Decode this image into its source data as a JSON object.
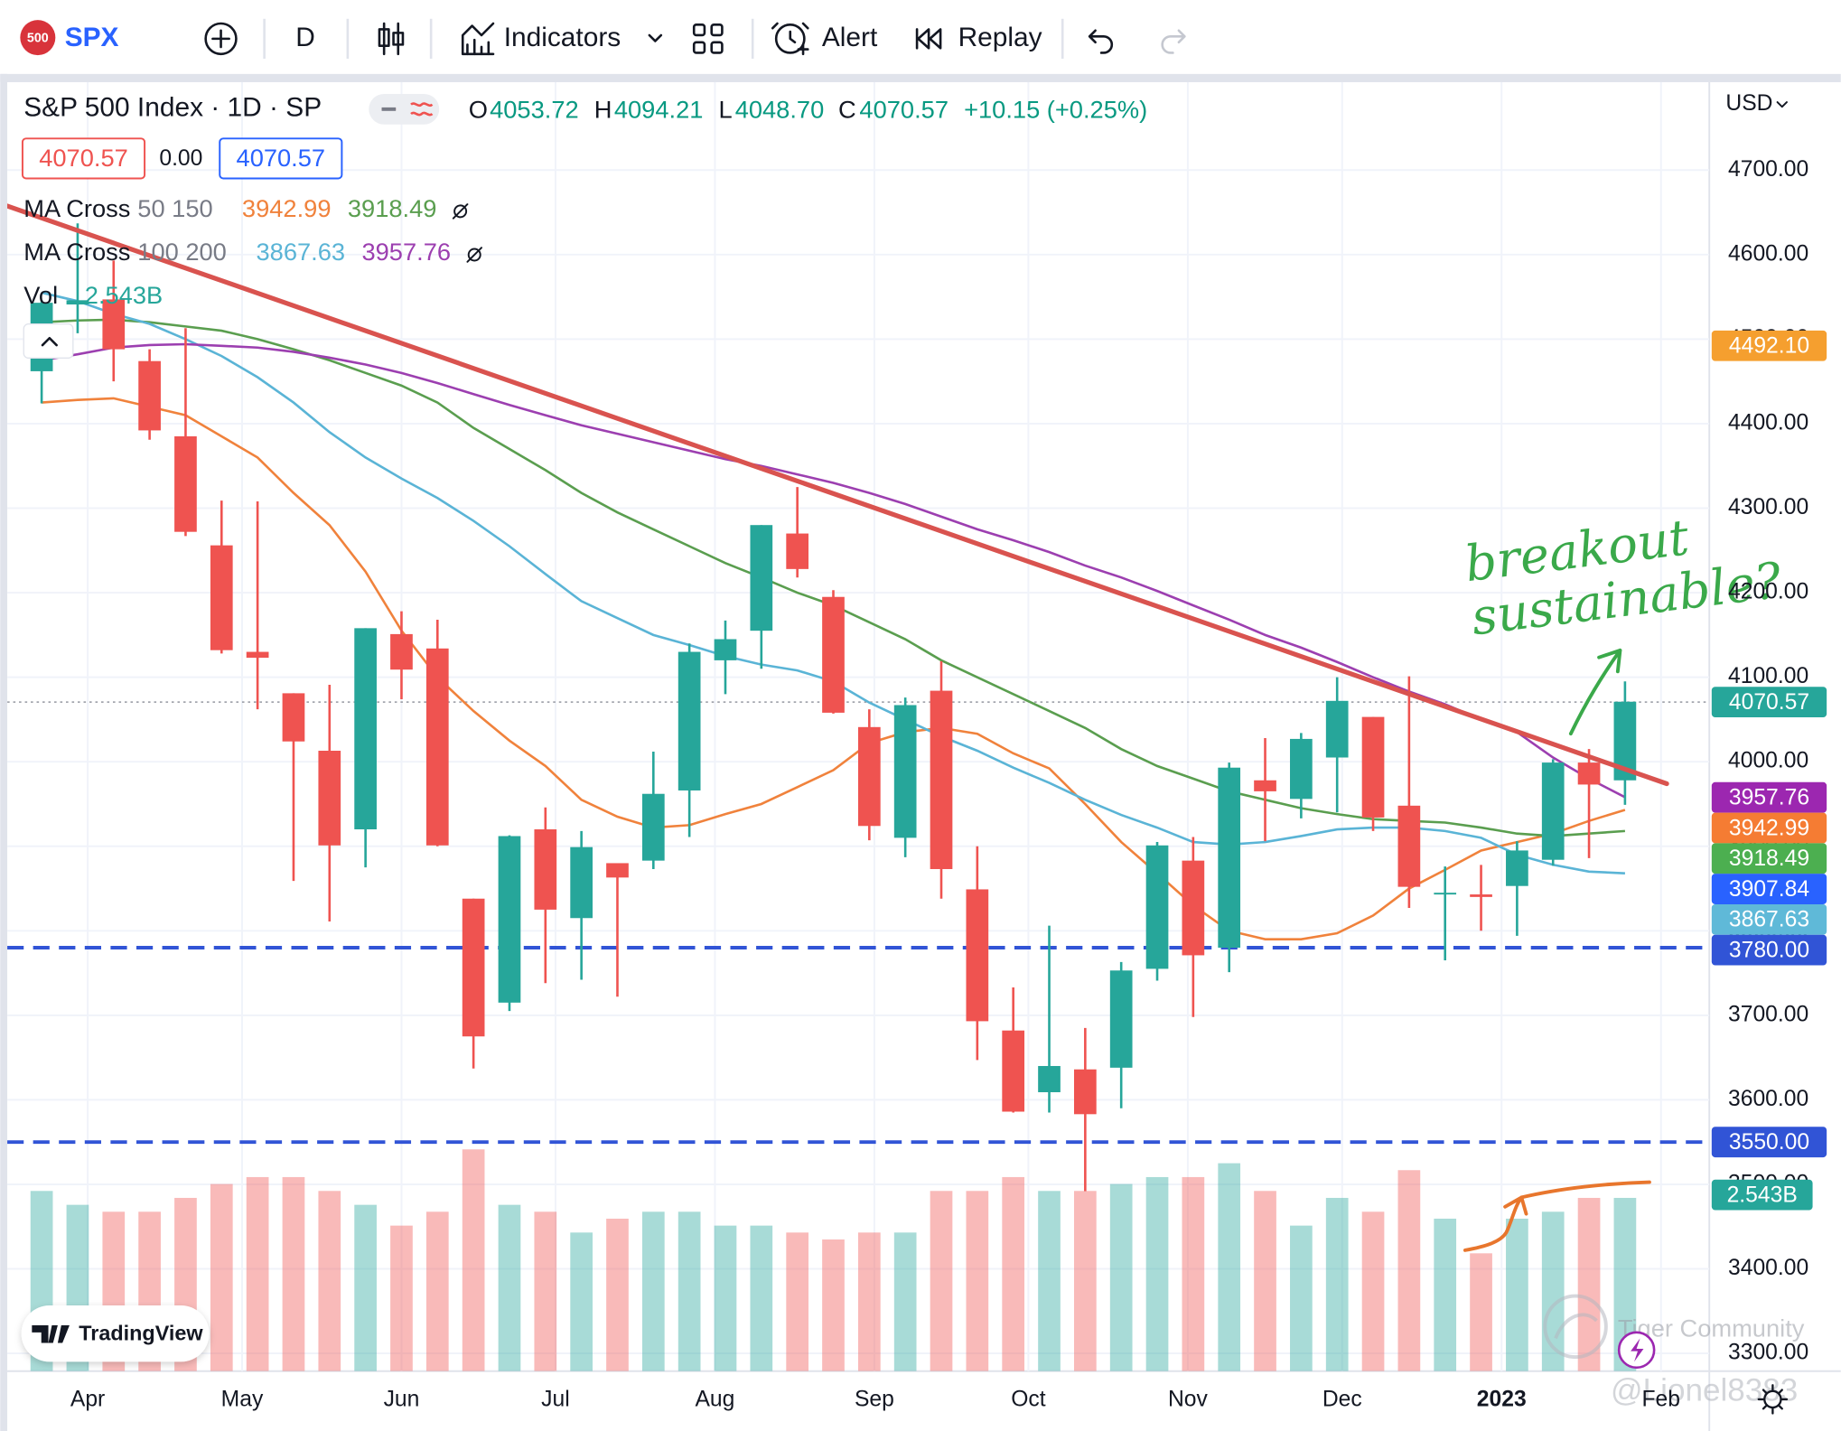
{
  "toolbar": {
    "symbol_badge": "500",
    "symbol": "SPX",
    "interval": "D",
    "indicators": "Indicators",
    "alert": "Alert",
    "replay": "Replay"
  },
  "chart_data": {
    "type": "candlestick",
    "title": "S&P 500 Index · 1D · SP",
    "ohlc": {
      "open_label": "O",
      "open": "4053.72",
      "high_label": "H",
      "high": "4094.21",
      "low_label": "L",
      "low": "4048.70",
      "close_label": "C",
      "close": "4070.57",
      "change": "+10.15 (+0.25%)"
    },
    "boxes": [
      "4070.57",
      "0.00",
      "4070.57"
    ],
    "currency": "USD",
    "up_color": "#26a69a",
    "down_color": "#ef5350",
    "categories": [
      null,
      null,
      null,
      null,
      null,
      null,
      null,
      null,
      null,
      null,
      null,
      null,
      null,
      null,
      null,
      null,
      null,
      null,
      null,
      null,
      null,
      null,
      null,
      null,
      null,
      null,
      null,
      null,
      null,
      null,
      null,
      null,
      null,
      null,
      null,
      null,
      null,
      null,
      null,
      null,
      null,
      null,
      null,
      null,
      null
    ],
    "open": [
      4462,
      4541,
      4547,
      4474,
      4385,
      4256,
      4130,
      4081,
      4013,
      3920,
      4151,
      4134,
      3838,
      3715,
      3920,
      3815,
      3880,
      3883,
      3966,
      4120,
      4155,
      4270,
      4195,
      4041,
      3910,
      4084,
      3849,
      3682,
      3609,
      3636,
      3638,
      3755,
      3883,
      3780,
      3978,
      3956,
      4005,
      4053,
      3948,
      3843,
      3843,
      3853,
      3884,
      3999,
      3978
    ],
    "high": [
      4546,
      4637,
      4593,
      4488,
      4513,
      4309,
      4308,
      4081,
      4091,
      4158,
      4178,
      4168,
      3838,
      3913,
      3946,
      3918,
      3880,
      4012,
      4140,
      4167,
      4280,
      4325,
      4203,
      4062,
      4076,
      4119,
      3900,
      3733,
      3806,
      3685,
      3763,
      3905,
      3911,
      3999,
      4028,
      4034,
      4100,
      4053,
      4101,
      3876,
      3878,
      3906,
      4003,
      4015,
      4095
    ],
    "low": [
      4424,
      4507,
      4450,
      4381,
      4267,
      4128,
      4062,
      3859,
      3811,
      3875,
      4074,
      3900,
      3637,
      3705,
      3738,
      3742,
      3722,
      3873,
      3911,
      4080,
      4110,
      4218,
      4057,
      3907,
      3887,
      3838,
      3647,
      3585,
      3585,
      3492,
      3590,
      3741,
      3698,
      3751,
      3906,
      3933,
      3940,
      3918,
      3827,
      3765,
      3800,
      3794,
      3877,
      3886,
      3949
    ],
    "close": [
      4543,
      4546,
      4488,
      4392,
      4272,
      4132,
      4123,
      4024,
      3901,
      4158,
      4109,
      3901,
      3675,
      3912,
      3825,
      3899,
      3863,
      3962,
      4130,
      4145,
      4280,
      4228,
      4058,
      3924,
      4067,
      3873,
      3693,
      3586,
      3640,
      3583,
      3753,
      3901,
      3771,
      3993,
      3965,
      4027,
      4072,
      3934,
      3852,
      3845,
      3840,
      3895,
      3999,
      3973,
      4071
    ],
    "indicators": [
      {
        "name": "MA Cross",
        "params": "50 150",
        "values_text": [
          "3942.99",
          "3918.49"
        ],
        "lines": [
          {
            "color": "#f0823c",
            "values": [
              4425,
              4428,
              4430,
              4420,
              4410,
              4385,
              4360,
              4318,
              4280,
              4225,
              4155,
              4100,
              4060,
              4025,
              3995,
              3955,
              3935,
              3922,
              3925,
              3938,
              3950,
              3970,
              3990,
              4022,
              4035,
              4040,
              4033,
              4010,
              3992,
              3950,
              3905,
              3868,
              3830,
              3800,
              3790,
              3790,
              3797,
              3818,
              3850,
              3872,
              3895,
              3905,
              3915,
              3930,
              3943
            ]
          },
          {
            "color": "#5a9e4f",
            "values": [
              4520,
              4522,
              4523,
              4520,
              4515,
              4510,
              4500,
              4488,
              4475,
              4460,
              4445,
              4425,
              4395,
              4370,
              4345,
              4318,
              4295,
              4275,
              4255,
              4235,
              4218,
              4200,
              4185,
              4165,
              4145,
              4120,
              4100,
              4080,
              4060,
              4040,
              4015,
              3995,
              3980,
              3965,
              3955,
              3945,
              3938,
              3932,
              3930,
              3928,
              3922,
              3915,
              3912,
              3915,
              3918
            ]
          }
        ]
      },
      {
        "name": "MA Cross",
        "params": "100 200",
        "values_text": [
          "3867.63",
          "3957.76"
        ],
        "lines": [
          {
            "color": "#5ab4d6",
            "values": [
              4555,
              4545,
              4530,
              4518,
              4500,
              4480,
              4455,
              4425,
              4390,
              4360,
              4335,
              4312,
              4285,
              4255,
              4222,
              4190,
              4170,
              4150,
              4138,
              4125,
              4115,
              4108,
              4095,
              4070,
              4050,
              4030,
              4013,
              3993,
              3975,
              3955,
              3937,
              3922,
              3905,
              3902,
              3905,
              3912,
              3920,
              3922,
              3922,
              3918,
              3910,
              3890,
              3878,
              3870,
              3868
            ]
          },
          {
            "color": "#9c3fb0",
            "values": [
              4475,
              4482,
              4490,
              4493,
              4494,
              4492,
              4490,
              4485,
              4478,
              4470,
              4460,
              4448,
              4435,
              4422,
              4410,
              4398,
              4388,
              4378,
              4368,
              4358,
              4350,
              4340,
              4330,
              4318,
              4305,
              4290,
              4275,
              4262,
              4248,
              4232,
              4218,
              4202,
              4185,
              4168,
              4150,
              4135,
              4118,
              4100,
              4083,
              4068,
              4050,
              4035,
              4005,
              3980,
              3958
            ]
          }
        ]
      }
    ],
    "volume": {
      "name": "Vol",
      "value_label": "2.543B",
      "value": 2.543,
      "color": "#26a69a",
      "vlim": [
        0,
        18.6
      ],
      "values": [
        2.6,
        2.4,
        2.3,
        2.3,
        2.5,
        2.7,
        2.8,
        2.8,
        2.6,
        2.4,
        2.1,
        2.3,
        3.2,
        2.4,
        2.3,
        2.0,
        2.2,
        2.3,
        2.3,
        2.1,
        2.1,
        2.0,
        1.9,
        2.0,
        2.0,
        2.6,
        2.6,
        2.8,
        2.6,
        2.6,
        2.7,
        2.8,
        2.8,
        3.0,
        2.6,
        2.1,
        2.5,
        2.3,
        2.9,
        2.2,
        1.7,
        2.2,
        2.3,
        2.5,
        2.5
      ]
    },
    "trendline": {
      "color": "#d9534f",
      "x": [
        -0.99,
        45.16
      ],
      "y": [
        4658,
        3974
      ]
    },
    "price_labels": [
      {
        "value": 4492.1,
        "label": "4492.10",
        "color": "#f59f2f"
      },
      {
        "value": 4070.57,
        "label": "4070.57",
        "color": "#26a69a",
        "line": "dotted"
      },
      {
        "value": 3957.76,
        "label": "3957.76",
        "color": "#9c27b0"
      },
      {
        "value": 3942.99,
        "label": "3942.99",
        "color": "#f57c33"
      },
      {
        "value": 3918.49,
        "label": "3918.49",
        "color": "#4caf50"
      },
      {
        "value": 3907.84,
        "label": "3907.84",
        "color": "#2962ff"
      },
      {
        "value": 3867.63,
        "label": "3867.63",
        "color": "#5fb9d8"
      },
      {
        "value": 3780.0,
        "label": "3780.00",
        "color": "#3154d6",
        "line": "dashed"
      },
      {
        "value": 3550.0,
        "label": "3550.00",
        "color": "#3154d6",
        "line": "dashed"
      }
    ],
    "xlim": [
      -0.89,
      46.31
    ],
    "ylim": [
      3279,
      4804
    ],
    "yticks": [
      {
        "value": 4700,
        "label": "4700.00"
      },
      {
        "value": 4600,
        "label": "4600.00"
      },
      {
        "value": 4500,
        "label": "4500.00"
      },
      {
        "value": 4400,
        "label": "4400.00"
      },
      {
        "value": 4300,
        "label": "4300.00"
      },
      {
        "value": 4200,
        "label": "4200.00"
      },
      {
        "value": 4100,
        "label": "4100.00"
      },
      {
        "value": 4000,
        "label": "4000.00"
      },
      {
        "value": 3900,
        "label": "3900.00"
      },
      {
        "value": 3800,
        "label": "3800.00"
      },
      {
        "value": 3700,
        "label": "3700.00"
      },
      {
        "value": 3600,
        "label": "3600.00"
      },
      {
        "value": 3500,
        "label": "3500.00"
      },
      {
        "value": 3400,
        "label": "3400.00"
      },
      {
        "value": 3300,
        "label": "3300.00"
      }
    ],
    "xticks": [
      {
        "value": 1.28,
        "label": "Apr"
      },
      {
        "value": 5.57,
        "label": "May"
      },
      {
        "value": 10.0,
        "label": "Jun"
      },
      {
        "value": 14.28,
        "label": "Jul"
      },
      {
        "value": 18.71,
        "label": "Aug"
      },
      {
        "value": 23.14,
        "label": "Sep"
      },
      {
        "value": 27.42,
        "label": "Oct"
      },
      {
        "value": 31.85,
        "label": "Nov"
      },
      {
        "value": 36.14,
        "label": "Dec"
      },
      {
        "value": 40.57,
        "label": "2023",
        "bold": true
      },
      {
        "value": 45.0,
        "label": "Feb"
      }
    ],
    "grid": true,
    "annotation": [
      "breakout",
      "sustainable?"
    ]
  },
  "logo": "TradingView",
  "watermark": {
    "community": "Tiger Community",
    "user": "@Lionel8383"
  }
}
